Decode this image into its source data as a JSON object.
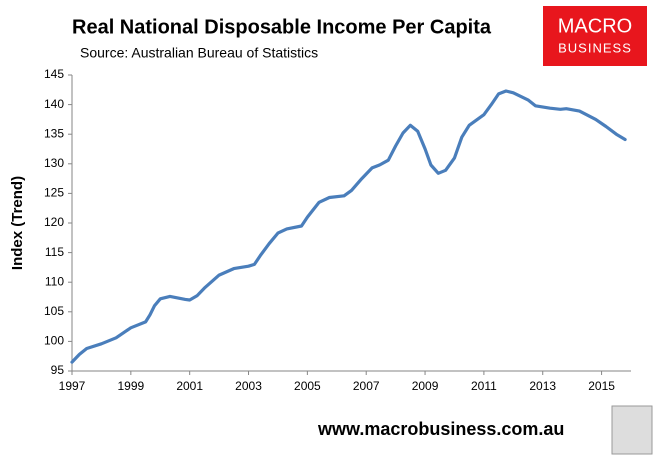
{
  "chart_data": {
    "type": "line",
    "title": "Real National Disposable Income Per Capita",
    "subtitle": "Source: Australian Bureau of Statistics",
    "ylabel": "Index (Trend)",
    "logo": [
      "MACRO",
      "BUSINESS"
    ],
    "footer": "www.macrobusiness.com.au",
    "xlim": [
      1997,
      2016
    ],
    "xticks": [
      1997,
      1999,
      2001,
      2003,
      2005,
      2007,
      2009,
      2011,
      2013,
      2015
    ],
    "ylim": [
      95,
      145
    ],
    "yticks": [
      95,
      100,
      105,
      110,
      115,
      120,
      125,
      130,
      135,
      140,
      145
    ],
    "grid": false,
    "series": [
      {
        "name": "Index (Trend)",
        "color": "#4a7ebb",
        "x": [
          1997.0,
          1997.25,
          1997.5,
          1998.0,
          1998.5,
          1999.0,
          1999.5,
          1999.65,
          1999.8,
          2000.0,
          2000.33,
          2000.85,
          2001.0,
          2001.25,
          2001.5,
          2002.0,
          2002.5,
          2003.0,
          2003.2,
          2003.4,
          2003.7,
          2004.0,
          2004.3,
          2004.8,
          2005.0,
          2005.4,
          2005.75,
          2006.25,
          2006.5,
          2006.85,
          2007.2,
          2007.45,
          2007.75,
          2008.0,
          2008.25,
          2008.5,
          2008.75,
          2009.0,
          2009.2,
          2009.45,
          2009.7,
          2010.0,
          2010.25,
          2010.5,
          2011.0,
          2011.25,
          2011.5,
          2011.75,
          2012.0,
          2012.5,
          2012.75,
          2013.25,
          2013.6,
          2013.8,
          2014.25,
          2014.8,
          2015.15,
          2015.5,
          2015.8
        ],
        "values": [
          96.5,
          97.8,
          98.8,
          99.6,
          100.6,
          102.3,
          103.3,
          104.5,
          106.0,
          107.2,
          107.6,
          107.1,
          107.0,
          107.7,
          109.0,
          111.2,
          112.3,
          112.7,
          113.0,
          114.5,
          116.5,
          118.3,
          119.0,
          119.5,
          121.0,
          123.5,
          124.3,
          124.6,
          125.5,
          127.5,
          129.3,
          129.8,
          130.6,
          133.0,
          135.2,
          136.5,
          135.5,
          132.5,
          129.8,
          128.4,
          128.9,
          131.0,
          134.5,
          136.5,
          138.3,
          140.0,
          141.8,
          142.3,
          142.0,
          140.8,
          139.8,
          139.4,
          139.2,
          139.3,
          138.9,
          137.5,
          136.3,
          135.0,
          134.1
        ]
      }
    ]
  }
}
